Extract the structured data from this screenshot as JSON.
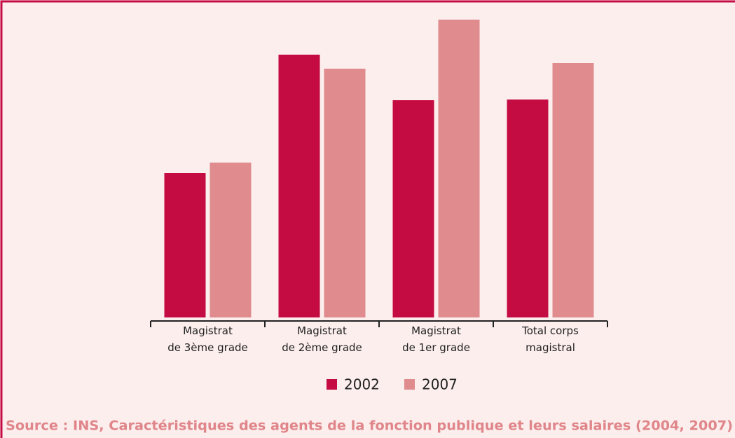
{
  "chart_data": {
    "type": "bar",
    "categories": [
      [
        "Magistrat",
        "de 3ème grade"
      ],
      [
        "Magistrat",
        "de 2ème grade"
      ],
      [
        "Magistrat",
        "de 1er grade"
      ],
      [
        "Total corps",
        "magistral"
      ]
    ],
    "series": [
      {
        "name": "2002",
        "color": "#c50c42",
        "values": [
          206,
          375,
          310,
          311
        ]
      },
      {
        "name": "2007",
        "color": "#e08c8e",
        "values": [
          221,
          355,
          425,
          363
        ]
      }
    ],
    "source": "Source : INS, Caractéristiques des agents de la fonction publique et leurs salaires (2004, 2007)"
  }
}
